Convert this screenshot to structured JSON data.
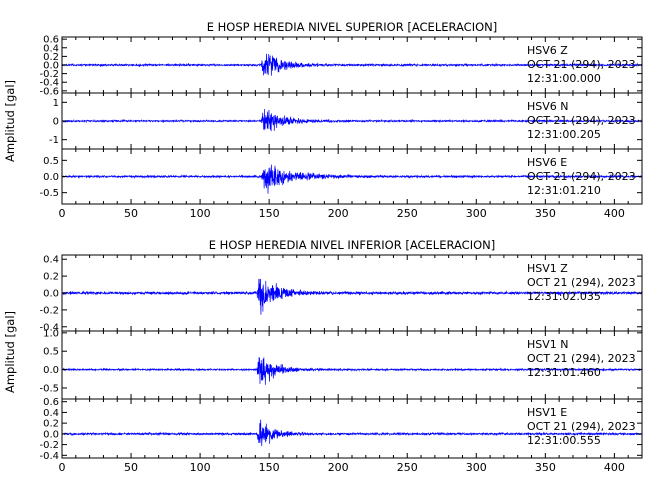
{
  "chart_data": [
    {
      "type": "line",
      "title": "E HOSP HEREDIA NIVEL SUPERIOR [ACELERACION]",
      "ylabel": "Amplitud [gal]",
      "xlim": [
        0,
        420
      ],
      "xticks": [
        0,
        50,
        100,
        150,
        200,
        250,
        300,
        350,
        400
      ],
      "event_onset_s": 144,
      "series": [
        {
          "station": "HSV6",
          "component": "Z",
          "date": "OCT 21 (294), 2023",
          "start_time": "12:31:00.000",
          "yticks": [
            -0.6,
            -0.4,
            -0.2,
            0.0,
            0.2,
            0.4,
            0.6
          ],
          "ytick_labels": [
            "-0.6",
            "-0.4",
            "-0.2",
            "0.0",
            "0.2",
            "0.4",
            "0.6"
          ],
          "ylim": [
            -0.65,
            0.65
          ],
          "peak_amplitude": 0.55,
          "noise_level": 0.03,
          "coda_decay_s": 12
        },
        {
          "station": "HSV6",
          "component": "N",
          "date": "OCT 21 (294), 2023",
          "start_time": "12:31:00.205",
          "yticks": [
            -1,
            0,
            1
          ],
          "ytick_labels": [
            "-1",
            "0",
            "1"
          ],
          "ylim": [
            -1.5,
            1.5
          ],
          "peak_amplitude": 1.0,
          "noise_level": 0.06,
          "coda_decay_s": 15
        },
        {
          "station": "HSV6",
          "component": "E",
          "date": "OCT 21 (294), 2023",
          "start_time": "12:31:01.210",
          "yticks": [
            -0.5,
            0.0,
            0.5
          ],
          "ytick_labels": [
            "-0.5",
            "0.0",
            "0.5"
          ],
          "ylim": [
            -0.85,
            0.85
          ],
          "peak_amplitude": 0.75,
          "noise_level": 0.04,
          "coda_decay_s": 18
        }
      ]
    },
    {
      "type": "line",
      "title": "E HOSP HEREDIA NIVEL INFERIOR [ACELERACION]",
      "ylabel": "Amplitud [gal]",
      "xlim": [
        0,
        420
      ],
      "xticks": [
        0,
        50,
        100,
        150,
        200,
        250,
        300,
        350,
        400
      ],
      "event_onset_s": 141,
      "series": [
        {
          "station": "HSV1",
          "component": "Z",
          "date": "OCT 21 (294), 2023",
          "start_time": "12:31:02.035",
          "yticks": [
            -0.4,
            -0.2,
            0.0,
            0.2,
            0.4
          ],
          "ytick_labels": [
            "-0.4",
            "-0.2",
            "0.0",
            "0.2",
            "0.4"
          ],
          "ylim": [
            -0.45,
            0.45
          ],
          "peak_amplitude": 0.38,
          "noise_level": 0.02,
          "coda_decay_s": 12
        },
        {
          "station": "HSV1",
          "component": "N",
          "date": "OCT 21 (294), 2023",
          "start_time": "12:31:01.460",
          "yticks": [
            -0.5,
            0.0,
            0.5,
            1.0
          ],
          "ytick_labels": [
            "-0.5",
            "0.0",
            "0.5",
            "1.0"
          ],
          "ylim": [
            -0.8,
            1.05
          ],
          "peak_amplitude": 0.95,
          "noise_level": 0.03,
          "coda_decay_s": 10
        },
        {
          "station": "HSV1",
          "component": "E",
          "date": "OCT 21 (294), 2023",
          "start_time": "12:31:00.555",
          "yticks": [
            -0.4,
            -0.2,
            0.0,
            0.2,
            0.4,
            0.6
          ],
          "ytick_labels": [
            "-0.4",
            "-0.2",
            "0.0",
            "0.2",
            "0.4",
            "0.6"
          ],
          "ylim": [
            -0.45,
            0.65
          ],
          "peak_amplitude": 0.55,
          "noise_level": 0.025,
          "coda_decay_s": 9
        }
      ]
    }
  ],
  "colors": {
    "trace": "#0000ff",
    "axes": "#000000",
    "background": "#ffffff"
  }
}
